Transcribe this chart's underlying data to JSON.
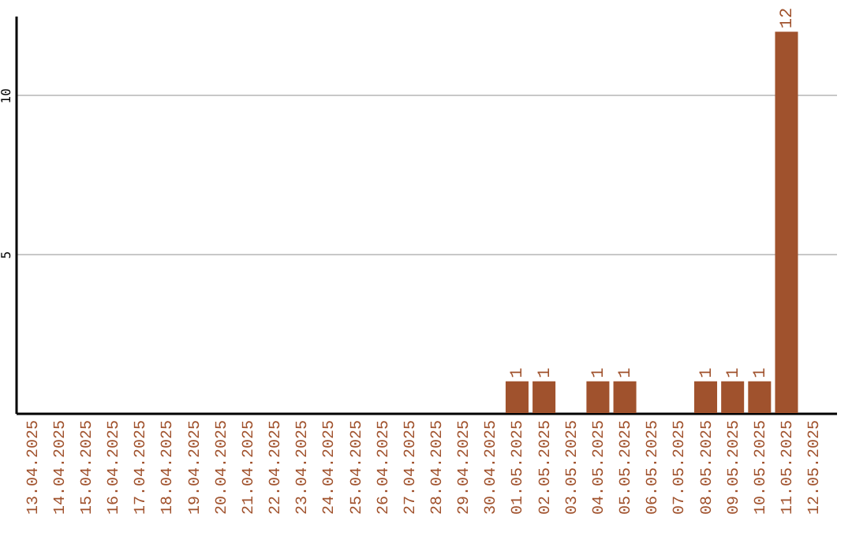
{
  "chart_data": {
    "type": "bar",
    "categories": [
      "13.04.2025",
      "14.04.2025",
      "15.04.2025",
      "16.04.2025",
      "17.04.2025",
      "18.04.2025",
      "19.04.2025",
      "20.04.2025",
      "21.04.2025",
      "22.04.2025",
      "23.04.2025",
      "24.04.2025",
      "25.04.2025",
      "26.04.2025",
      "27.04.2025",
      "28.04.2025",
      "29.04.2025",
      "30.04.2025",
      "01.05.2025",
      "02.05.2025",
      "03.05.2025",
      "04.05.2025",
      "05.05.2025",
      "06.05.2025",
      "07.05.2025",
      "08.05.2025",
      "09.05.2025",
      "10.05.2025",
      "11.05.2025",
      "12.05.2025"
    ],
    "values": [
      0,
      0,
      0,
      0,
      0,
      0,
      0,
      0,
      0,
      0,
      0,
      0,
      0,
      0,
      0,
      0,
      0,
      0,
      1,
      1,
      0,
      1,
      1,
      0,
      0,
      1,
      1,
      1,
      12,
      0
    ],
    "value_labels": [
      null,
      null,
      null,
      null,
      null,
      null,
      null,
      null,
      null,
      null,
      null,
      null,
      null,
      null,
      null,
      null,
      null,
      null,
      "1",
      "1",
      null,
      "1",
      "1",
      null,
      null,
      "1",
      "1",
      "1",
      "12",
      null
    ],
    "color": "#a0522d",
    "ylim": [
      0,
      12.5
    ],
    "yticks": [
      5,
      10
    ],
    "grid": "y"
  }
}
